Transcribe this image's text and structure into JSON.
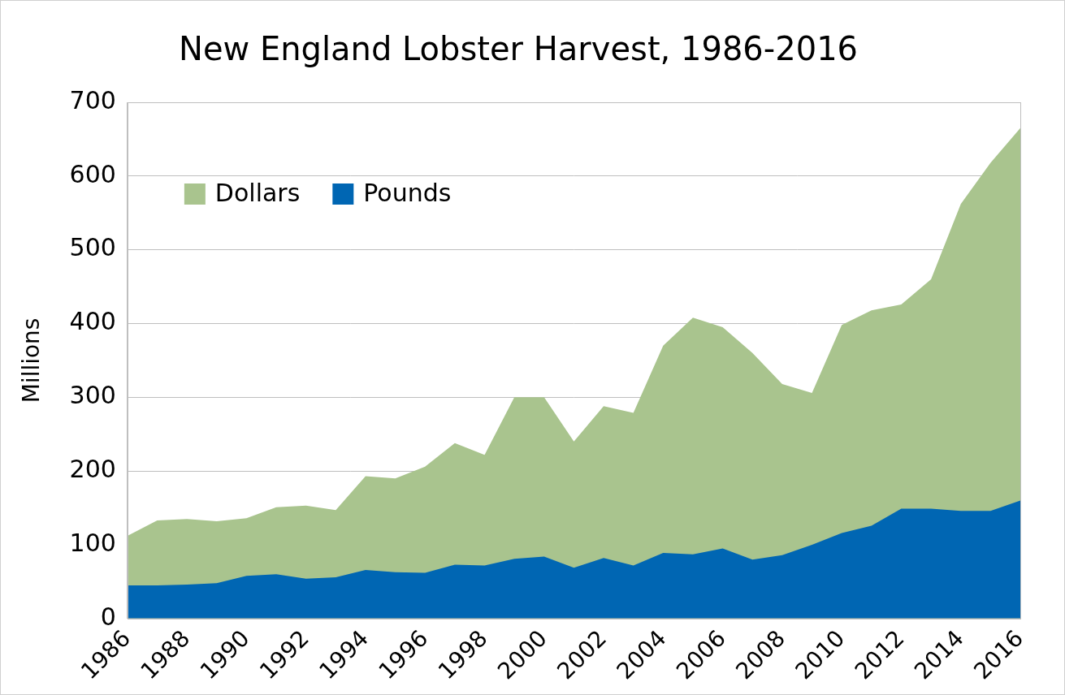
{
  "chart_data": {
    "type": "area",
    "title": "New England Lobster Harvest, 1986-2016",
    "y_label": "Millions",
    "x": [
      1986,
      1987,
      1988,
      1989,
      1990,
      1991,
      1992,
      1993,
      1994,
      1995,
      1996,
      1997,
      1998,
      1999,
      2000,
      2001,
      2002,
      2003,
      2004,
      2005,
      2006,
      2007,
      2008,
      2009,
      2010,
      2011,
      2012,
      2013,
      2014,
      2015,
      2016
    ],
    "series": [
      {
        "name": "Dollars",
        "color": "#a9c48e",
        "values": [
          112,
          133,
          135,
          132,
          136,
          151,
          153,
          147,
          193,
          190,
          206,
          238,
          222,
          300,
          300,
          240,
          288,
          279,
          370,
          408,
          395,
          360,
          318,
          306,
          398,
          418,
          426,
          460,
          562,
          618,
          665
        ]
      },
      {
        "name": "Pounds",
        "color": "#0066b3",
        "values": [
          45,
          45,
          46,
          48,
          58,
          60,
          54,
          56,
          66,
          63,
          62,
          73,
          72,
          81,
          84,
          69,
          82,
          72,
          89,
          87,
          95,
          80,
          86,
          100,
          116,
          126,
          149,
          149,
          146,
          146,
          160
        ]
      }
    ],
    "xlim": [
      1986,
      2016
    ],
    "xticks": [
      1986,
      1988,
      1990,
      1992,
      1994,
      1996,
      1998,
      2000,
      2002,
      2004,
      2006,
      2008,
      2010,
      2012,
      2014,
      2016
    ],
    "ylim": [
      0,
      700
    ],
    "yticks": [
      0,
      100,
      200,
      300,
      400,
      500,
      600,
      700
    ],
    "grid": true,
    "legend": "upper left"
  }
}
